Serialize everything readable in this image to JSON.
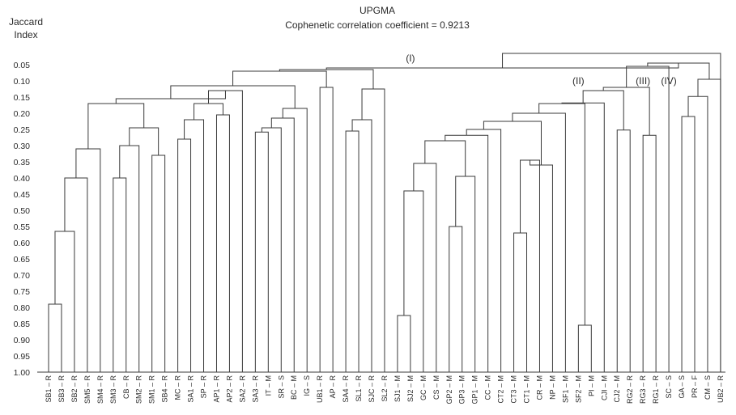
{
  "chart_data": {
    "type": "dendrogram",
    "title": "UPGMA",
    "subtitle": "Cophenetic correlation coefficient = 0.9213",
    "ylabel_lines": [
      "Jaccard",
      "Index"
    ],
    "yticks": [
      "0.05",
      "0.10",
      "0.15",
      "0.20",
      "0.25",
      "0.30",
      "0.35",
      "0.40",
      "0.45",
      "0.50",
      "0.55",
      "0.60",
      "0.65",
      "0.70",
      "0.75",
      "0.80",
      "0.85",
      "0.90",
      "0.95",
      "1.00"
    ],
    "ylim": [
      0.0,
      1.0
    ],
    "leaves": [
      "SB1 – R",
      "SB3 – R",
      "SB2 – R",
      "SM5 – R",
      "SM4 – R",
      "SM3 – R",
      "CB – R",
      "SM2 – R",
      "SM1 – R",
      "SB4 – R",
      "MC – R",
      "SA1 – R",
      "SP – R",
      "AP1 – R",
      "AP2 – R",
      "SA2 – R",
      "SA3 – R",
      "IT – M",
      "SR – S",
      "BC – M",
      "IG – S",
      "UB1 – R",
      "AP – R",
      "SA4 – R",
      "SL1 – R",
      "SJC – R",
      "SL2 – R",
      "SJ1 – M",
      "SJ2 – M",
      "GC – M",
      "CS – M",
      "GP2 – M",
      "GP3 – M",
      "GP1 – M",
      "CC – M",
      "CT2 – M",
      "CT3 – M",
      "CT1 – M",
      "CR – M",
      "NP – M",
      "SF1 – M",
      "SF2 – M",
      "PI – M",
      "CJI – M",
      "CJ2 – M",
      "RG2 – R",
      "RG3 – R",
      "RG1 – R",
      "SC – S",
      "GA – S",
      "PR – F",
      "CM – S",
      "UB2 – R"
    ],
    "merges": [
      [
        "SB1 – R",
        "SB3 – R",
        0.79
      ],
      [
        "c1",
        "SB2 – R",
        0.565
      ],
      [
        "c2",
        "SM5 – R",
        0.4
      ],
      [
        "c3",
        "SM4 – R",
        0.31
      ],
      [
        "SM3 – R",
        "CB – R",
        0.4
      ],
      [
        "c5",
        "SM2 – R",
        0.3
      ],
      [
        "SM1 – R",
        "SB4 – R",
        0.33
      ],
      [
        "c6",
        "c7",
        0.245
      ],
      [
        "c4",
        "c8",
        0.17
      ],
      [
        "MC – R",
        "SA1 – R",
        0.28
      ],
      [
        "c10",
        "SP – R",
        0.22
      ],
      [
        "AP1 – R",
        "AP2 – R",
        0.205
      ],
      [
        "c11",
        "c12",
        0.17
      ],
      [
        "c13",
        "SA2 – R",
        0.13
      ],
      [
        "c9",
        "c14",
        0.155
      ],
      [
        "SA3 – R",
        "IT – M",
        0.258
      ],
      [
        "c16",
        "SR – S",
        0.245
      ],
      [
        "c17",
        "BC – M",
        0.215
      ],
      [
        "c18",
        "IG – S",
        0.185
      ],
      [
        "c15",
        "c19",
        0.115
      ],
      [
        "UB1 – R",
        "AP – R",
        0.12
      ],
      [
        "c20",
        "c21",
        0.07
      ],
      [
        "SA4 – R",
        "SL1 – R",
        0.255
      ],
      [
        "c23",
        "SJC – R",
        0.22
      ],
      [
        "c24",
        "SL2 – R",
        0.125
      ],
      [
        "c22",
        "c25",
        0.065
      ],
      [
        "SJ1 – M",
        "SJ2 – M",
        0.825
      ],
      [
        "c27",
        "GC – M",
        0.44
      ],
      [
        "c28",
        "CS – M",
        0.355
      ],
      [
        "GP2 – M",
        "GP3 – M",
        0.55
      ],
      [
        "c30",
        "GP1 – M",
        0.395
      ],
      [
        "c29",
        "c31",
        0.285
      ],
      [
        "c32",
        "CC – M",
        0.268
      ],
      [
        "c33",
        "CT2 – M",
        0.25
      ],
      [
        "CT3 – M",
        "CT1 – M",
        0.57
      ],
      [
        "c35",
        "CR – M",
        0.345
      ],
      [
        "c36",
        "NP – M",
        0.36
      ],
      [
        "c34",
        "c37",
        0.225
      ],
      [
        "c38",
        "SF1 – M",
        0.2
      ],
      [
        "SF2 – M",
        "PI – M",
        0.855
      ],
      [
        "c39",
        "c40",
        0.17
      ],
      [
        "c41",
        "CJI – M",
        0.168
      ],
      [
        "CJ2 – M",
        "RG2 – R",
        0.252
      ],
      [
        "c42",
        "c43",
        0.13
      ],
      [
        "RG3 – R",
        "RG1 – R",
        0.268
      ],
      [
        "c44",
        "c45",
        0.12
      ],
      [
        "c46",
        "SC – S",
        0.055
      ],
      [
        "GA – S",
        "PR – F",
        0.21
      ],
      [
        "c48",
        "CM – S",
        0.148
      ],
      [
        "c49",
        "UB2 – R",
        0.095
      ],
      [
        "c47",
        "c50",
        0.045
      ],
      [
        "c26",
        "c51",
        0.06
      ],
      [
        "c52",
        "UB2 – R",
        0.015
      ]
    ],
    "cluster_labels": [
      {
        "text": "(I)",
        "leaf": "SJ2 – M",
        "level": 0.03
      },
      {
        "text": "(II)",
        "leaf": "SF2 – M",
        "level": 0.1
      },
      {
        "text": "(III)",
        "leaf": "RG3 – R",
        "level": 0.1
      },
      {
        "text": "(IV)",
        "leaf": "SC – S",
        "level": 0.1
      }
    ]
  }
}
